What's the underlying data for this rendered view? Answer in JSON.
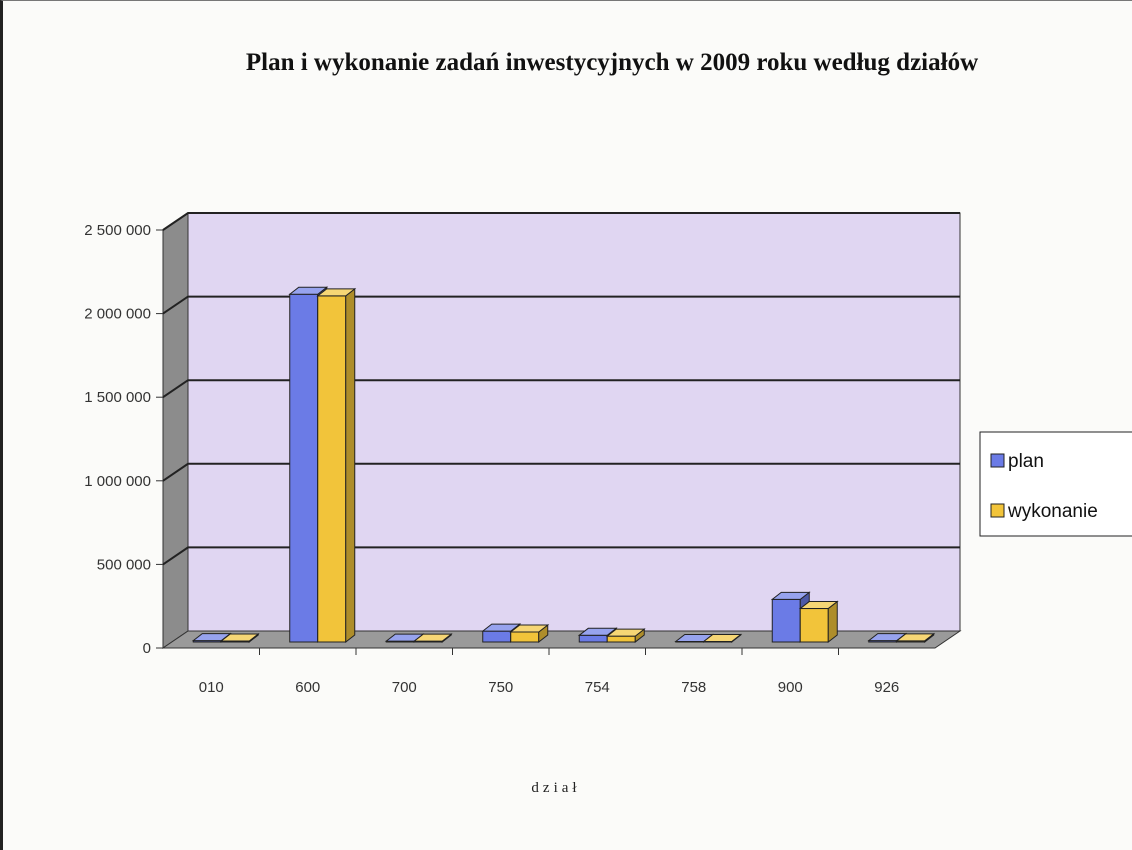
{
  "chart_data": {
    "type": "bar",
    "title": "Plan i wykonanie zadań inwestycyjnych w 2009 roku według działów",
    "xlabel": "dział",
    "ylabel": "",
    "categories": [
      "010",
      "600",
      "700",
      "750",
      "754",
      "758",
      "900",
      "926"
    ],
    "series": [
      {
        "name": "plan",
        "color": "#6b7be6",
        "values": [
          8000,
          2080000,
          5000,
          65000,
          40000,
          3000,
          255000,
          8000
        ]
      },
      {
        "name": "wykonanie",
        "color": "#f2c43a",
        "values": [
          6000,
          2070000,
          5000,
          60000,
          35000,
          3000,
          200000,
          7000
        ]
      }
    ],
    "ylim": [
      0,
      2500000
    ],
    "yticks": [
      0,
      500000,
      1000000,
      1500000,
      2000000,
      2500000
    ],
    "ytick_labels": [
      "0",
      "500 000",
      "1 000 000",
      "1 500 000",
      "2 000 000",
      "2 500 000"
    ],
    "grid": true,
    "legend": "right",
    "plot_background": "#e0d6f2"
  }
}
